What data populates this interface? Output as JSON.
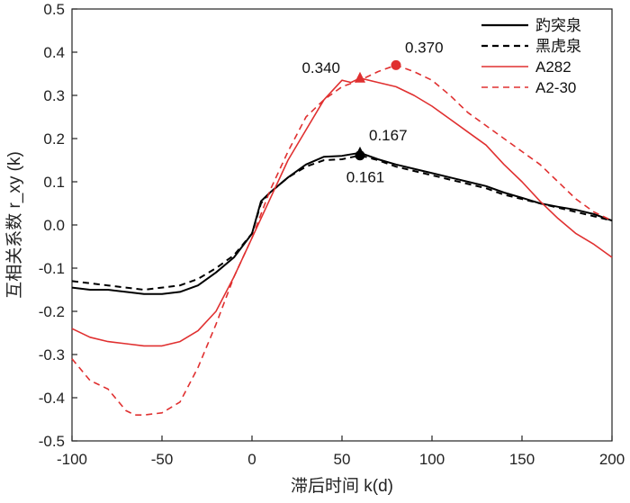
{
  "chart_data": {
    "type": "line",
    "xlabel": "滞后时间 k(d)",
    "ylabel": "互相关系数 r_xy (k)",
    "xlim": [
      -100,
      200
    ],
    "ylim": [
      -0.5,
      0.5
    ],
    "x_ticks": [
      -100,
      -50,
      0,
      50,
      100,
      150,
      200
    ],
    "y_ticks": [
      -0.5,
      -0.4,
      -0.3,
      -0.2,
      -0.1,
      0.0,
      0.1,
      0.2,
      0.3,
      0.4,
      0.5
    ],
    "x_tick_labels": [
      "-100",
      "-50",
      "0",
      "50",
      "100",
      "150",
      "200"
    ],
    "y_tick_labels": [
      "-0.5",
      "-0.4",
      "-0.3",
      "-0.2",
      "-0.1",
      "0.0",
      "0.1",
      "0.2",
      "0.3",
      "0.4",
      "0.5"
    ],
    "legend_position": "top-right",
    "series": [
      {
        "name": "趵突泉",
        "color": "#000000",
        "dash": "solid",
        "x": [
          -100,
          -90,
          -80,
          -70,
          -60,
          -50,
          -40,
          -30,
          -20,
          -10,
          0,
          5,
          10,
          20,
          30,
          40,
          50,
          60,
          70,
          80,
          90,
          100,
          110,
          120,
          130,
          140,
          150,
          160,
          170,
          180,
          190,
          200
        ],
        "y": [
          -0.145,
          -0.15,
          -0.15,
          -0.155,
          -0.16,
          -0.16,
          -0.155,
          -0.14,
          -0.11,
          -0.075,
          -0.02,
          0.055,
          0.075,
          0.11,
          0.14,
          0.158,
          0.16,
          0.167,
          0.152,
          0.14,
          0.13,
          0.12,
          0.11,
          0.1,
          0.09,
          0.075,
          0.063,
          0.05,
          0.042,
          0.035,
          0.025,
          0.01
        ]
      },
      {
        "name": "黑虎泉",
        "color": "#000000",
        "dash": "dashed",
        "x": [
          -100,
          -90,
          -80,
          -70,
          -60,
          -50,
          -40,
          -30,
          -20,
          -10,
          0,
          5,
          10,
          20,
          30,
          40,
          50,
          60,
          70,
          80,
          90,
          100,
          110,
          120,
          130,
          140,
          150,
          160,
          170,
          180,
          190,
          200
        ],
        "y": [
          -0.13,
          -0.135,
          -0.14,
          -0.145,
          -0.15,
          -0.145,
          -0.14,
          -0.125,
          -0.1,
          -0.07,
          -0.02,
          0.05,
          0.075,
          0.11,
          0.135,
          0.15,
          0.152,
          0.161,
          0.15,
          0.135,
          0.125,
          0.115,
          0.105,
          0.095,
          0.085,
          0.07,
          0.06,
          0.05,
          0.04,
          0.03,
          0.02,
          0.01
        ]
      },
      {
        "name": "A282",
        "color": "#e03030",
        "dash": "solid",
        "x": [
          -100,
          -90,
          -80,
          -70,
          -60,
          -50,
          -40,
          -30,
          -20,
          -10,
          0,
          10,
          20,
          30,
          40,
          50,
          55,
          60,
          70,
          80,
          90,
          100,
          110,
          120,
          130,
          140,
          150,
          160,
          170,
          180,
          190,
          200
        ],
        "y": [
          -0.24,
          -0.26,
          -0.27,
          -0.275,
          -0.28,
          -0.28,
          -0.27,
          -0.245,
          -0.2,
          -0.12,
          -0.03,
          0.06,
          0.15,
          0.22,
          0.29,
          0.335,
          0.33,
          0.34,
          0.33,
          0.32,
          0.3,
          0.275,
          0.245,
          0.215,
          0.185,
          0.14,
          0.1,
          0.055,
          0.015,
          -0.02,
          -0.045,
          -0.075
        ]
      },
      {
        "name": "A2-30",
        "color": "#e03030",
        "dash": "dashed",
        "x": [
          -100,
          -90,
          -80,
          -70,
          -65,
          -60,
          -50,
          -40,
          -30,
          -20,
          -10,
          0,
          10,
          20,
          30,
          40,
          50,
          60,
          70,
          80,
          90,
          100,
          110,
          120,
          130,
          140,
          150,
          160,
          170,
          180,
          190,
          200
        ],
        "y": [
          -0.31,
          -0.36,
          -0.38,
          -0.43,
          -0.44,
          -0.44,
          -0.435,
          -0.41,
          -0.33,
          -0.23,
          -0.12,
          -0.03,
          0.08,
          0.17,
          0.25,
          0.29,
          0.32,
          0.335,
          0.355,
          0.37,
          0.355,
          0.335,
          0.3,
          0.26,
          0.23,
          0.2,
          0.17,
          0.14,
          0.1,
          0.06,
          0.03,
          0.01
        ]
      }
    ],
    "annotations": [
      {
        "series": "A282",
        "x": 60,
        "y": 0.34,
        "label": "0.340",
        "marker": "triangle",
        "color": "#e03030",
        "anchor": "left-above"
      },
      {
        "series": "A2-30",
        "x": 80,
        "y": 0.37,
        "label": "0.370",
        "marker": "circle",
        "color": "#e03030",
        "anchor": "right-above"
      },
      {
        "series": "趵突泉",
        "x": 60,
        "y": 0.167,
        "label": "0.167",
        "marker": "triangle",
        "color": "#000000",
        "anchor": "right-above"
      },
      {
        "series": "黑虎泉",
        "x": 60,
        "y": 0.161,
        "label": "0.161",
        "marker": "circle",
        "color": "#000000",
        "anchor": "below"
      }
    ]
  }
}
